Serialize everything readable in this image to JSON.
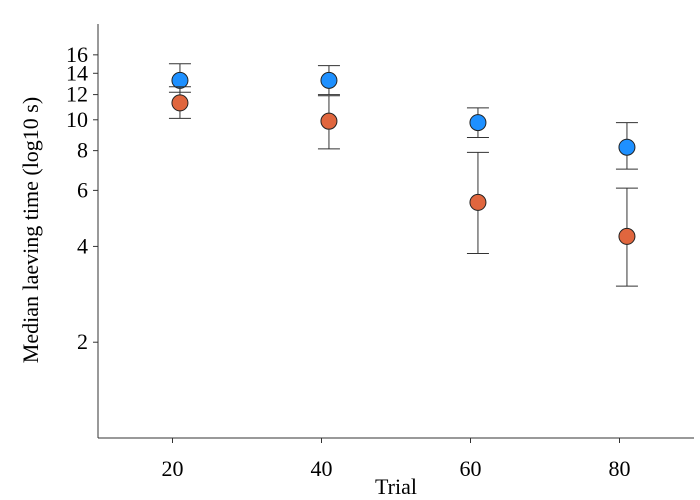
{
  "chart_data": {
    "type": "scatter",
    "xlabel": "Trial",
    "ylabel": "Median laeving time (log10 s)",
    "y_scale": "log10",
    "xlim": [
      10,
      90
    ],
    "ylim": [
      1,
      20
    ],
    "x_ticks": [
      20,
      40,
      60,
      80
    ],
    "y_ticks": [
      2,
      4,
      6,
      8,
      10,
      12,
      14,
      16
    ],
    "grid": false,
    "series": [
      {
        "color": "#1E90FF",
        "points": [
          {
            "x": 21,
            "y": 13.3,
            "low": 12.2,
            "high": 15.0
          },
          {
            "x": 41,
            "y": 13.3,
            "low": 12.0,
            "high": 14.8
          },
          {
            "x": 61,
            "y": 9.8,
            "low": 8.8,
            "high": 10.9
          },
          {
            "x": 81,
            "y": 8.2,
            "low": 7.0,
            "high": 9.8
          }
        ]
      },
      {
        "color": "#E0663E",
        "points": [
          {
            "x": 21,
            "y": 11.3,
            "low": 10.1,
            "high": 12.7
          },
          {
            "x": 41,
            "y": 9.9,
            "low": 8.1,
            "high": 11.9
          },
          {
            "x": 61,
            "y": 5.5,
            "low": 3.8,
            "high": 7.9
          },
          {
            "x": 81,
            "y": 4.3,
            "low": 3.0,
            "high": 6.1
          }
        ]
      }
    ]
  }
}
